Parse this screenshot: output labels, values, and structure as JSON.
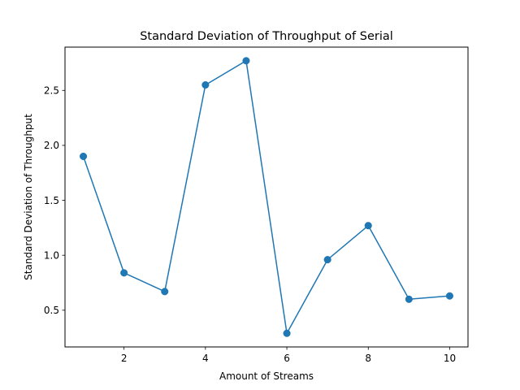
{
  "chart_data": {
    "type": "line",
    "title": "Standard Deviation of Throughput of Serial",
    "xlabel": "Amount of Streams",
    "ylabel": "Standard Deviation of Throughput",
    "x": [
      1,
      2,
      3,
      4,
      5,
      6,
      7,
      8,
      9,
      10
    ],
    "series": [
      {
        "values": [
          1.9,
          0.84,
          0.67,
          2.55,
          2.77,
          0.29,
          0.96,
          1.27,
          0.6,
          0.63
        ],
        "color": "#1f77b4",
        "marker": "circle"
      }
    ],
    "xlim": [
      0.55,
      10.45
    ],
    "ylim": [
      0.166,
      2.894
    ],
    "xticks": [
      2,
      4,
      6,
      8,
      10
    ],
    "xtick_labels": [
      "2",
      "4",
      "6",
      "8",
      "10"
    ],
    "yticks": [
      0.5,
      1.0,
      1.5,
      2.0,
      2.5
    ],
    "ytick_labels": [
      "0.5",
      "1.0",
      "1.5",
      "2.0",
      "2.5"
    ],
    "grid": false,
    "legend": "none"
  }
}
